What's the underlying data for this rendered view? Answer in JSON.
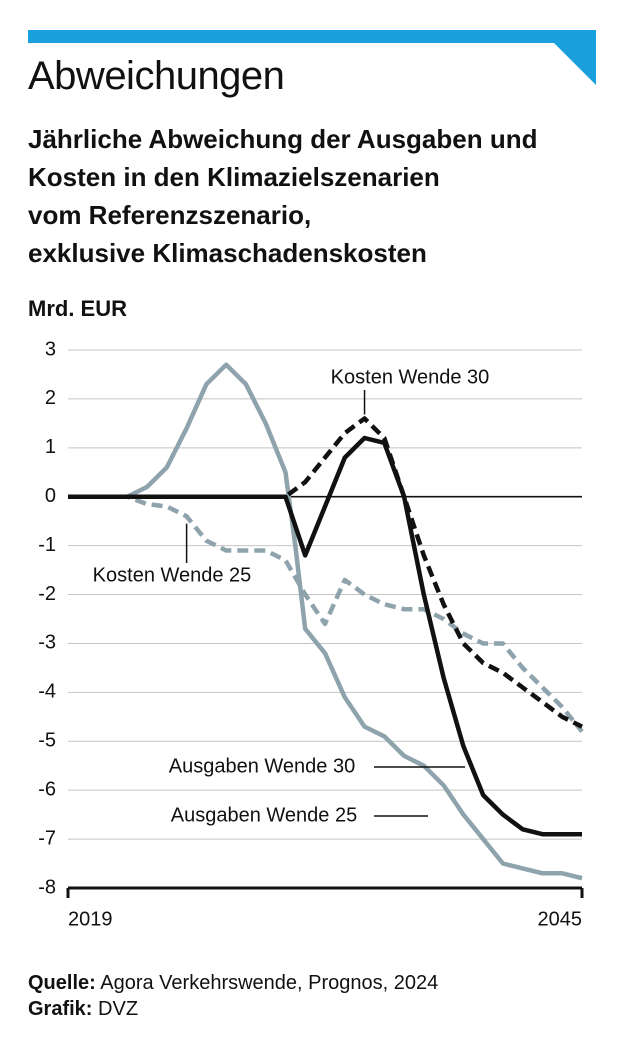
{
  "header": {
    "title": "Abweichungen",
    "subtitle_lines": [
      "Jährliche Abweichung der Ausgaben und",
      "Kosten in den Klimazielszenarien",
      "vom Referenzszenario,",
      "exklusive Klimaschadenskosten"
    ],
    "unit": "Mrd. EUR"
  },
  "colors": {
    "accent": "#1aa0dc",
    "series_black": "#111111",
    "series_grey": "#8fa3ad",
    "grid": "#c4c4c4"
  },
  "chart_data": {
    "type": "line",
    "ylabel": "Mrd. EUR",
    "ylim": [
      -8,
      3
    ],
    "yticks": [
      3,
      2,
      1,
      0,
      -1,
      -2,
      -3,
      -4,
      -5,
      -6,
      -7,
      -8
    ],
    "xlim": [
      2019,
      2045
    ],
    "xtick_labels": [
      "2019",
      "2045"
    ],
    "grid": true,
    "series": [
      {
        "name": "Ausgaben Wende 25",
        "color": "#8fa3ad",
        "style": "solid",
        "x": [
          2019,
          2022,
          2023,
          2024,
          2025,
          2026,
          2027,
          2028,
          2029,
          2030,
          2030.5,
          2031,
          2032,
          2033,
          2034,
          2035,
          2036,
          2037,
          2038,
          2039,
          2040,
          2041,
          2042,
          2043,
          2044,
          2045
        ],
        "y": [
          0,
          0,
          0.2,
          0.6,
          1.4,
          2.3,
          2.7,
          2.3,
          1.5,
          0.5,
          -1.0,
          -2.7,
          -3.2,
          -4.1,
          -4.7,
          -4.9,
          -5.3,
          -5.5,
          -5.9,
          -6.5,
          -7.0,
          -7.5,
          -7.6,
          -7.7,
          -7.7,
          -7.8
        ]
      },
      {
        "name": "Ausgaben Wende 30",
        "color": "#111111",
        "style": "solid",
        "x": [
          2019,
          2030,
          2031,
          2032,
          2033,
          2034,
          2035,
          2036,
          2037,
          2038,
          2039,
          2040,
          2041,
          2042,
          2043,
          2044,
          2045
        ],
        "y": [
          0,
          0,
          -1.2,
          -0.2,
          0.8,
          1.2,
          1.1,
          0,
          -2.0,
          -3.7,
          -5.1,
          -6.1,
          -6.5,
          -6.8,
          -6.9,
          -6.9,
          -6.9
        ]
      },
      {
        "name": "Kosten Wende 25",
        "color": "#8fa3ad",
        "style": "dashed",
        "x": [
          2019,
          2022,
          2023,
          2024,
          2025,
          2026,
          2027,
          2028,
          2029,
          2030,
          2031,
          2032,
          2033,
          2034,
          2035,
          2036,
          2037,
          2038,
          2039,
          2040,
          2041,
          2042,
          2043,
          2044,
          2045
        ],
        "y": [
          0,
          0,
          -0.15,
          -0.2,
          -0.4,
          -0.9,
          -1.1,
          -1.1,
          -1.1,
          -1.3,
          -2.0,
          -2.6,
          -1.7,
          -2.0,
          -2.2,
          -2.3,
          -2.3,
          -2.5,
          -2.8,
          -3.0,
          -3.0,
          -3.5,
          -3.9,
          -4.3,
          -4.8
        ]
      },
      {
        "name": "Kosten Wende 30",
        "color": "#111111",
        "style": "dashed",
        "x": [
          2019,
          2030,
          2031,
          2032,
          2033,
          2034,
          2035,
          2036,
          2037,
          2038,
          2039,
          2040,
          2041,
          2042,
          2043,
          2044,
          2045
        ],
        "y": [
          0,
          0,
          0.3,
          0.8,
          1.3,
          1.6,
          1.2,
          0,
          -1.2,
          -2.2,
          -3.0,
          -3.4,
          -3.6,
          -3.9,
          -4.2,
          -4.5,
          -4.7
        ]
      }
    ],
    "annotations": [
      {
        "text": "Kosten Wende 30",
        "series": 3
      },
      {
        "text": "Kosten Wende 25",
        "series": 2
      },
      {
        "text": "Ausgaben Wende 30",
        "series": 1
      },
      {
        "text": "Ausgaben Wende 25",
        "series": 0
      }
    ]
  },
  "footer": {
    "source_label": "Quelle:",
    "source_text": "Agora Verkehrswende, Prognos, 2024",
    "graphic_label": "Grafik:",
    "graphic_text": "DVZ"
  }
}
